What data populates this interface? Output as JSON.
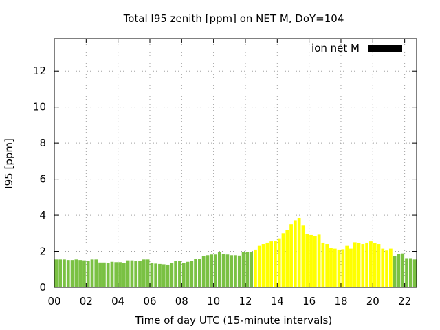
{
  "chart_data": {
    "type": "bar",
    "title": "Total I95 zenith [ppm] on NET M, DoY=104",
    "xlabel": "Time of day UTC (15-minute intervals)",
    "ylabel": "I95 [ppm]",
    "ylim": [
      0,
      13.8
    ],
    "xlim": [
      0,
      22.75
    ],
    "x_ticks": [
      "00",
      "02",
      "04",
      "06",
      "08",
      "10",
      "12",
      "14",
      "16",
      "18",
      "20",
      "22"
    ],
    "y_ticks": [
      "0",
      "2",
      "4",
      "6",
      "8",
      "10",
      "12"
    ],
    "grid": true,
    "legend": {
      "position": "top-right",
      "entries": [
        {
          "label": "ion net M",
          "color": "#000000"
        }
      ]
    },
    "colors": {
      "normal": "#7ac143",
      "elevated": "#ffff00"
    },
    "bar_interval_hours": 0.25,
    "series": [
      {
        "values": [
          1.55,
          1.55,
          1.55,
          1.52,
          1.52,
          1.55,
          1.52,
          1.5,
          1.48,
          1.55,
          1.55,
          1.38,
          1.38,
          1.36,
          1.42,
          1.4,
          1.4,
          1.35,
          1.5,
          1.5,
          1.48,
          1.48,
          1.55,
          1.55,
          1.36,
          1.32,
          1.3,
          1.28,
          1.26,
          1.35,
          1.48,
          1.45,
          1.35,
          1.42,
          1.45,
          1.58,
          1.6,
          1.72,
          1.78,
          1.82,
          1.82,
          1.98,
          1.86,
          1.82,
          1.78,
          1.78,
          1.76,
          1.96,
          1.96,
          1.96,
          2.1,
          2.3,
          2.4,
          2.48,
          2.55,
          2.58,
          2.72,
          3.0,
          3.2,
          3.5,
          3.72,
          3.85,
          3.42,
          2.95,
          2.9,
          2.85,
          2.92,
          2.48,
          2.4,
          2.2,
          2.15,
          2.1,
          2.12,
          2.3,
          2.15,
          2.5,
          2.45,
          2.4,
          2.48,
          2.55,
          2.45,
          2.4,
          2.15,
          2.05,
          2.15,
          1.75,
          1.85,
          1.88,
          1.62,
          1.62,
          1.55
        ],
        "categories": [
          "normal",
          "normal",
          "normal",
          "normal",
          "normal",
          "normal",
          "normal",
          "normal",
          "normal",
          "normal",
          "normal",
          "normal",
          "normal",
          "normal",
          "normal",
          "normal",
          "normal",
          "normal",
          "normal",
          "normal",
          "normal",
          "normal",
          "normal",
          "normal",
          "normal",
          "normal",
          "normal",
          "normal",
          "normal",
          "normal",
          "normal",
          "normal",
          "normal",
          "normal",
          "normal",
          "normal",
          "normal",
          "normal",
          "normal",
          "normal",
          "normal",
          "normal",
          "normal",
          "normal",
          "normal",
          "normal",
          "normal",
          "normal",
          "normal",
          "normal",
          "elevated",
          "elevated",
          "elevated",
          "elevated",
          "elevated",
          "elevated",
          "elevated",
          "elevated",
          "elevated",
          "elevated",
          "elevated",
          "elevated",
          "elevated",
          "elevated",
          "elevated",
          "elevated",
          "elevated",
          "elevated",
          "elevated",
          "elevated",
          "elevated",
          "elevated",
          "elevated",
          "elevated",
          "elevated",
          "elevated",
          "elevated",
          "elevated",
          "elevated",
          "elevated",
          "elevated",
          "elevated",
          "elevated",
          "elevated",
          "elevated",
          "normal",
          "normal",
          "normal",
          "normal",
          "normal",
          "normal"
        ]
      }
    ]
  }
}
